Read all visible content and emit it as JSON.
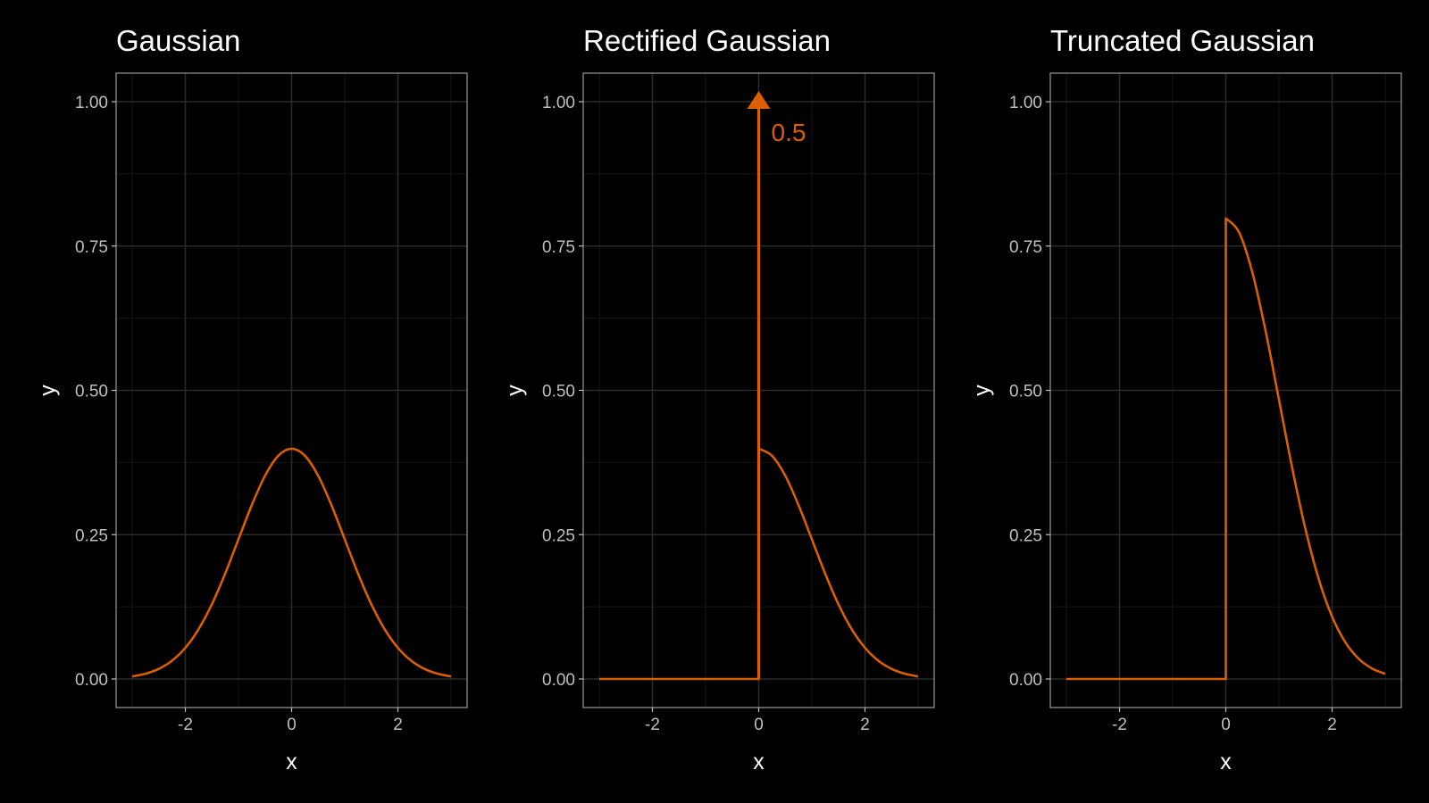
{
  "theme": {
    "background": "#000000",
    "panel_border": "#9a9a9a",
    "grid_major": "#2a2a2a",
    "grid_minor": "#161616",
    "tick_label": "#bfbfbf",
    "axis_title": "#ffffff",
    "title": "#ffffff",
    "line": "#D95F02"
  },
  "chart_data": [
    {
      "type": "line",
      "title": "Gaussian",
      "xlabel": "x",
      "ylabel": "y",
      "xlim": [
        -3,
        3
      ],
      "ylim": [
        0,
        1
      ],
      "x_ticks": [
        -2,
        0,
        2
      ],
      "y_ticks": [
        0,
        0.25,
        0.5,
        0.75,
        1.0
      ],
      "x_tick_labels": [
        "-2",
        "0",
        "2"
      ],
      "y_tick_labels": [
        "0.00",
        "0.25",
        "0.50",
        "0.75",
        "1.00"
      ],
      "grid": true,
      "series": [
        {
          "x": [
            -3,
            -2.75,
            -2.5,
            -2.25,
            -2,
            -1.75,
            -1.5,
            -1.25,
            -1,
            -0.75,
            -0.5,
            -0.25,
            0,
            0.25,
            0.5,
            0.75,
            1,
            1.25,
            1.5,
            1.75,
            2,
            2.25,
            2.5,
            2.75,
            3
          ],
          "y": [
            0.0044,
            0.0091,
            0.0175,
            0.0317,
            0.054,
            0.0863,
            0.1295,
            0.1826,
            0.242,
            0.3011,
            0.3521,
            0.3867,
            0.3989,
            0.3867,
            0.3521,
            0.3011,
            0.242,
            0.1826,
            0.1295,
            0.0863,
            0.054,
            0.0317,
            0.0175,
            0.0091,
            0.0044
          ]
        }
      ]
    },
    {
      "type": "line",
      "title": "Rectified Gaussian",
      "xlabel": "x",
      "ylabel": "y",
      "xlim": [
        -3,
        3
      ],
      "ylim": [
        0,
        1
      ],
      "x_ticks": [
        -2,
        0,
        2
      ],
      "y_ticks": [
        0,
        0.25,
        0.5,
        0.75,
        1.0
      ],
      "x_tick_labels": [
        "-2",
        "0",
        "2"
      ],
      "y_tick_labels": [
        "0.00",
        "0.25",
        "0.50",
        "0.75",
        "1.00"
      ],
      "grid": true,
      "series": [
        {
          "x": [
            -3,
            0,
            0,
            0.25,
            0.5,
            0.75,
            1,
            1.25,
            1.5,
            1.75,
            2,
            2.25,
            2.5,
            2.75,
            3
          ],
          "y": [
            0,
            0,
            0.3989,
            0.3867,
            0.3521,
            0.3011,
            0.242,
            0.1826,
            0.1295,
            0.0863,
            0.054,
            0.0317,
            0.0175,
            0.0091,
            0.0044
          ]
        }
      ],
      "annotations": [
        {
          "type": "arrow",
          "x": 0,
          "y_start": 0,
          "y_end": 1.0,
          "label": "0.5"
        }
      ]
    },
    {
      "type": "line",
      "title": "Truncated Gaussian",
      "xlabel": "x",
      "ylabel": "y",
      "xlim": [
        -3,
        3
      ],
      "ylim": [
        0,
        1
      ],
      "x_ticks": [
        -2,
        0,
        2
      ],
      "y_ticks": [
        0,
        0.25,
        0.5,
        0.75,
        1.0
      ],
      "x_tick_labels": [
        "-2",
        "0",
        "2"
      ],
      "y_tick_labels": [
        "0.00",
        "0.25",
        "0.50",
        "0.75",
        "1.00"
      ],
      "grid": true,
      "series": [
        {
          "x": [
            -3,
            0,
            0,
            0.25,
            0.5,
            0.75,
            1,
            1.25,
            1.5,
            1.75,
            2,
            2.25,
            2.5,
            2.75,
            3
          ],
          "y": [
            0,
            0,
            0.7979,
            0.7734,
            0.7041,
            0.6023,
            0.4839,
            0.3653,
            0.2591,
            0.1726,
            0.108,
            0.0635,
            0.0351,
            0.0182,
            0.0089
          ]
        }
      ]
    }
  ]
}
